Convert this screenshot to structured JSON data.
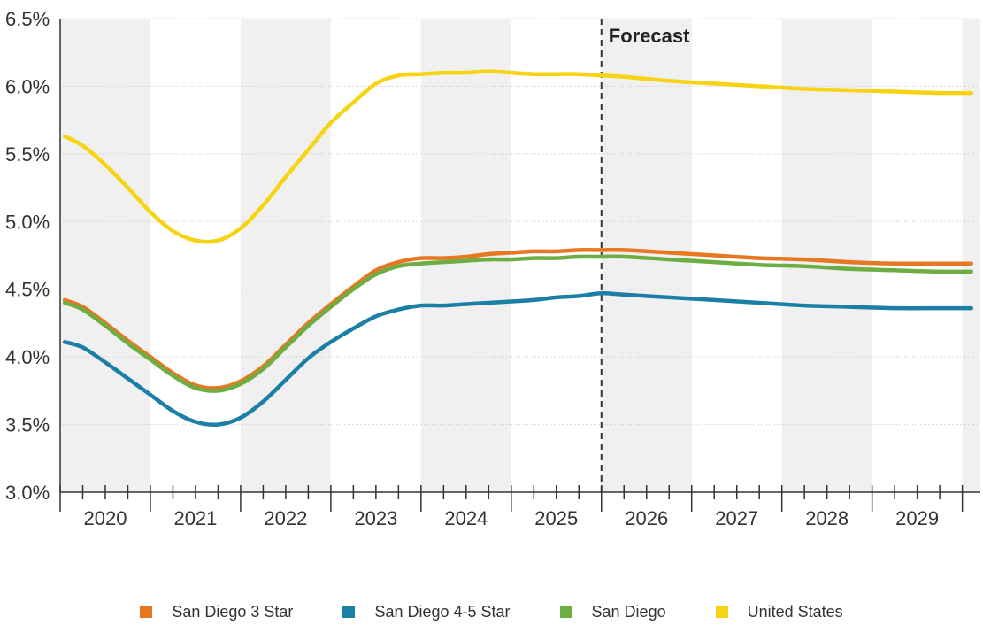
{
  "chart_data": {
    "type": "line",
    "y_ticks": [
      "3.0%",
      "3.5%",
      "4.0%",
      "4.5%",
      "5.0%",
      "5.5%",
      "6.0%",
      "6.5%"
    ],
    "ylim": [
      3.0,
      6.5
    ],
    "x_ticks": [
      "2020",
      "2021",
      "2022",
      "2023",
      "2024",
      "2025",
      "2026",
      "2027",
      "2028",
      "2029"
    ],
    "xlim": [
      2019.75,
      2029.95
    ],
    "grid": "horizontal dotted gridlines; alternating shaded year bands",
    "forecast": {
      "label": "Forecast",
      "x": 2025.75
    },
    "legend_position": "bottom",
    "series": [
      {
        "name": "San Diego 3 Star",
        "color": "#E87722",
        "points": [
          [
            2019.8,
            4.42
          ],
          [
            2020.0,
            4.37
          ],
          [
            2020.25,
            4.25
          ],
          [
            2020.5,
            4.12
          ],
          [
            2020.75,
            4.0
          ],
          [
            2021.0,
            3.88
          ],
          [
            2021.25,
            3.79
          ],
          [
            2021.5,
            3.77
          ],
          [
            2021.75,
            3.82
          ],
          [
            2022.0,
            3.93
          ],
          [
            2022.25,
            4.09
          ],
          [
            2022.5,
            4.25
          ],
          [
            2022.75,
            4.39
          ],
          [
            2023.0,
            4.52
          ],
          [
            2023.25,
            4.64
          ],
          [
            2023.5,
            4.7
          ],
          [
            2023.75,
            4.73
          ],
          [
            2024.0,
            4.73
          ],
          [
            2024.25,
            4.74
          ],
          [
            2024.5,
            4.76
          ],
          [
            2024.75,
            4.77
          ],
          [
            2025.0,
            4.78
          ],
          [
            2025.25,
            4.78
          ],
          [
            2025.5,
            4.79
          ],
          [
            2025.75,
            4.79
          ],
          [
            2026.0,
            4.79
          ],
          [
            2026.5,
            4.77
          ],
          [
            2027.0,
            4.75
          ],
          [
            2027.5,
            4.73
          ],
          [
            2028.0,
            4.72
          ],
          [
            2028.5,
            4.7
          ],
          [
            2029.0,
            4.69
          ],
          [
            2029.5,
            4.69
          ],
          [
            2029.85,
            4.69
          ]
        ]
      },
      {
        "name": "San Diego 4-5 Star",
        "color": "#1B7FA6",
        "points": [
          [
            2019.8,
            4.11
          ],
          [
            2020.0,
            4.07
          ],
          [
            2020.25,
            3.96
          ],
          [
            2020.5,
            3.84
          ],
          [
            2020.75,
            3.72
          ],
          [
            2021.0,
            3.6
          ],
          [
            2021.25,
            3.52
          ],
          [
            2021.5,
            3.5
          ],
          [
            2021.75,
            3.55
          ],
          [
            2022.0,
            3.67
          ],
          [
            2022.25,
            3.83
          ],
          [
            2022.5,
            3.99
          ],
          [
            2022.75,
            4.11
          ],
          [
            2023.0,
            4.21
          ],
          [
            2023.25,
            4.3
          ],
          [
            2023.5,
            4.35
          ],
          [
            2023.75,
            4.38
          ],
          [
            2024.0,
            4.38
          ],
          [
            2024.25,
            4.39
          ],
          [
            2024.5,
            4.4
          ],
          [
            2024.75,
            4.41
          ],
          [
            2025.0,
            4.42
          ],
          [
            2025.25,
            4.44
          ],
          [
            2025.5,
            4.45
          ],
          [
            2025.75,
            4.47
          ],
          [
            2026.0,
            4.46
          ],
          [
            2026.5,
            4.44
          ],
          [
            2027.0,
            4.42
          ],
          [
            2027.5,
            4.4
          ],
          [
            2028.0,
            4.38
          ],
          [
            2028.5,
            4.37
          ],
          [
            2029.0,
            4.36
          ],
          [
            2029.5,
            4.36
          ],
          [
            2029.85,
            4.36
          ]
        ]
      },
      {
        "name": "San Diego",
        "color": "#6DAE43",
        "points": [
          [
            2019.8,
            4.4
          ],
          [
            2020.0,
            4.35
          ],
          [
            2020.25,
            4.23
          ],
          [
            2020.5,
            4.1
          ],
          [
            2020.75,
            3.98
          ],
          [
            2021.0,
            3.86
          ],
          [
            2021.25,
            3.77
          ],
          [
            2021.5,
            3.75
          ],
          [
            2021.75,
            3.8
          ],
          [
            2022.0,
            3.91
          ],
          [
            2022.25,
            4.07
          ],
          [
            2022.5,
            4.23
          ],
          [
            2022.75,
            4.37
          ],
          [
            2023.0,
            4.5
          ],
          [
            2023.25,
            4.61
          ],
          [
            2023.5,
            4.67
          ],
          [
            2023.75,
            4.69
          ],
          [
            2024.0,
            4.7
          ],
          [
            2024.25,
            4.71
          ],
          [
            2024.5,
            4.72
          ],
          [
            2024.75,
            4.72
          ],
          [
            2025.0,
            4.73
          ],
          [
            2025.25,
            4.73
          ],
          [
            2025.5,
            4.74
          ],
          [
            2025.75,
            4.74
          ],
          [
            2026.0,
            4.74
          ],
          [
            2026.5,
            4.72
          ],
          [
            2027.0,
            4.7
          ],
          [
            2027.5,
            4.68
          ],
          [
            2028.0,
            4.67
          ],
          [
            2028.5,
            4.65
          ],
          [
            2029.0,
            4.64
          ],
          [
            2029.5,
            4.63
          ],
          [
            2029.85,
            4.63
          ]
        ]
      },
      {
        "name": "United States",
        "color": "#F6D313",
        "points": [
          [
            2019.8,
            5.63
          ],
          [
            2020.0,
            5.56
          ],
          [
            2020.25,
            5.42
          ],
          [
            2020.5,
            5.25
          ],
          [
            2020.75,
            5.07
          ],
          [
            2021.0,
            4.93
          ],
          [
            2021.25,
            4.86
          ],
          [
            2021.5,
            4.86
          ],
          [
            2021.75,
            4.95
          ],
          [
            2022.0,
            5.12
          ],
          [
            2022.25,
            5.33
          ],
          [
            2022.5,
            5.53
          ],
          [
            2022.75,
            5.73
          ],
          [
            2023.0,
            5.88
          ],
          [
            2023.25,
            6.02
          ],
          [
            2023.5,
            6.08
          ],
          [
            2023.75,
            6.09
          ],
          [
            2024.0,
            6.1
          ],
          [
            2024.25,
            6.1
          ],
          [
            2024.5,
            6.11
          ],
          [
            2024.75,
            6.1
          ],
          [
            2025.0,
            6.09
          ],
          [
            2025.25,
            6.09
          ],
          [
            2025.5,
            6.09
          ],
          [
            2025.75,
            6.08
          ],
          [
            2026.0,
            6.07
          ],
          [
            2026.5,
            6.04
          ],
          [
            2027.0,
            6.02
          ],
          [
            2027.5,
            6.0
          ],
          [
            2028.0,
            5.98
          ],
          [
            2028.5,
            5.97
          ],
          [
            2029.0,
            5.96
          ],
          [
            2029.5,
            5.95
          ],
          [
            2029.85,
            5.95
          ]
        ]
      }
    ]
  }
}
